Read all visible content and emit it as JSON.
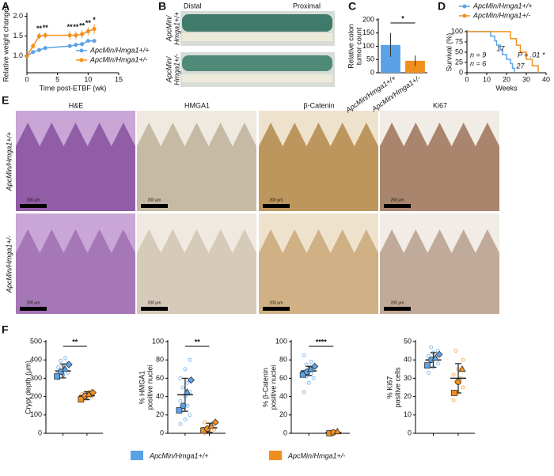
{
  "figure": {
    "panels": [
      "A",
      "B",
      "C",
      "D",
      "E",
      "F"
    ],
    "B": {
      "distal": "Distal",
      "proximal": "Proximal",
      "rows": [
        [
          "ApcMin/",
          "Hmga1+/+"
        ],
        [
          "ApcMin/",
          "Hmga1+/-"
        ]
      ]
    },
    "E": {
      "columns": [
        "H&E",
        "HMGA1",
        "β-Catenin",
        "Ki67"
      ],
      "rows": [
        "ApcMin/Hmga1+/+",
        "ApcMin/Hmga1+/-"
      ],
      "scale_bar": "200 μm"
    },
    "legend": [
      {
        "name": "ApcMin/Hmga1+/+",
        "color": "#5aa2e8"
      },
      {
        "name": "ApcMin/Hmga1+/-",
        "color": "#f28e1c"
      }
    ]
  },
  "chart_data": [
    {
      "type": "line",
      "ylabel": [
        "Relative weight changes"
      ],
      "xlabel": "Time post-ETBF (wk)",
      "xlim": [
        0,
        15
      ],
      "xticks": [
        0,
        5,
        10,
        15
      ],
      "ylim": [
        0.58,
        2.05
      ],
      "yticks": [
        {
          "value": 1,
          "label": "1.0"
        },
        {
          "value": 1.5,
          "label": "1.5"
        },
        {
          "value": 2,
          "label": "2.0"
        }
      ],
      "legend": "lower right",
      "series": [
        {
          "name": "ApcMin/Hmga1+/+",
          "color": "#5aa2e8",
          "x": [
            0,
            1,
            2,
            3,
            7,
            8,
            9,
            10,
            11
          ],
          "values": [
            1.0,
            1.1,
            1.15,
            1.2,
            1.25,
            1.28,
            1.3,
            1.38,
            1.38
          ],
          "errors": [
            0.02,
            0.04,
            0.05,
            0.05,
            0.05,
            0.05,
            0.05,
            0.04,
            0.04
          ]
        },
        {
          "name": "ApcMin/Hmga1+/-",
          "color": "#f28e1c",
          "x": [
            0,
            1,
            2,
            3,
            7,
            8,
            9,
            10,
            11
          ],
          "values": [
            1.0,
            1.25,
            1.5,
            1.52,
            1.52,
            1.52,
            1.55,
            1.62,
            1.68
          ],
          "errors": [
            0.02,
            0.06,
            0.08,
            0.08,
            0.1,
            0.1,
            0.1,
            0.1,
            0.12
          ],
          "significance": [
            null,
            null,
            "**",
            "**",
            "**",
            "**",
            "**",
            "**",
            "*"
          ]
        }
      ]
    },
    {
      "type": "bar",
      "ylabel": [
        "Relative colon",
        "tumor count"
      ],
      "categories": [
        "ApcMin/Hmga1+/+",
        "ApcMin/Hmga1+/-"
      ],
      "values": [
        105,
        45
      ],
      "errors": [
        45,
        20
      ],
      "colors": [
        "#5aa2e8",
        "#f28e1c"
      ],
      "ylim": [
        0,
        200
      ],
      "yticks": [
        0,
        50,
        100,
        150,
        200
      ],
      "significance": "*"
    },
    {
      "type": "step",
      "ylabel": [
        "Survival (%)"
      ],
      "xlabel": "Weeks",
      "xlim": [
        0,
        40
      ],
      "xticks": [
        0,
        10,
        20,
        30,
        40
      ],
      "ylim": [
        0,
        100
      ],
      "yticks": [
        0,
        25,
        50,
        75,
        100
      ],
      "legend": "upper right",
      "p_label": "P = .01 *",
      "series": [
        {
          "name": "ApcMin/Hmga1+/+",
          "color": "#5aa2e8",
          "x": [
            0,
            10,
            12,
            14,
            15,
            17,
            18,
            20,
            22,
            23,
            24
          ],
          "values": [
            100,
            100,
            89,
            78,
            67,
            56,
            44,
            33,
            22,
            11,
            0
          ],
          "n_label": "n = 9",
          "median": 17
        },
        {
          "name": "ApcMin/Hmga1+/-",
          "color": "#f28e1c",
          "x": [
            0,
            20,
            22,
            25,
            27,
            30,
            33,
            36
          ],
          "values": [
            100,
            100,
            83,
            67,
            50,
            33,
            17,
            0
          ],
          "n_label": "n = 6",
          "median": 27
        }
      ]
    },
    {
      "type": "strip",
      "ylabel": [
        "Crypt depth (μm)"
      ],
      "ylim": [
        0,
        500
      ],
      "yticks": [
        0,
        100,
        200,
        300,
        400,
        500
      ],
      "significance": "**",
      "groups": [
        {
          "color": "#5aa2e8",
          "points": [
            300,
            320,
            330,
            345,
            350,
            360,
            370,
            380,
            395,
            410,
            330,
            315
          ],
          "replicates": [
            310,
            335,
            350,
            375
          ],
          "mean": 340,
          "error": 38
        },
        {
          "color": "#f28e1c",
          "points": [
            180,
            190,
            200,
            205,
            210,
            215,
            220,
            230,
            195,
            225
          ],
          "replicates": [
            185,
            205,
            212,
            222
          ],
          "mean": 205,
          "error": 22
        }
      ]
    },
    {
      "type": "strip",
      "ylabel": [
        "% HMGA1",
        "positive nuclei"
      ],
      "ylim": [
        0,
        100
      ],
      "yticks": [
        0,
        20,
        40,
        60,
        80,
        100
      ],
      "significance": "**",
      "groups": [
        {
          "color": "#5aa2e8",
          "points": [
            10,
            15,
            20,
            25,
            30,
            35,
            40,
            45,
            50,
            55,
            60,
            70,
            80
          ],
          "replicates": [
            25,
            30,
            45,
            58
          ],
          "mean": 42,
          "error": 18
        },
        {
          "color": "#f28e1c",
          "points": [
            0,
            2,
            4,
            6,
            8,
            12
          ],
          "replicates": [
            3,
            5,
            8,
            12
          ],
          "mean": 6,
          "error": 5
        }
      ]
    },
    {
      "type": "strip",
      "ylabel": [
        "% β-Catenin",
        "positive nuclei"
      ],
      "ylim": [
        0,
        100
      ],
      "yticks": [
        0,
        20,
        40,
        60,
        80,
        100
      ],
      "significance": "****",
      "groups": [
        {
          "color": "#5aa2e8",
          "points": [
            45,
            55,
            60,
            62,
            65,
            67,
            70,
            72,
            75,
            78,
            85
          ],
          "replicates": [
            64,
            67,
            70,
            73
          ],
          "mean": 68,
          "error": 5
        },
        {
          "color": "#f28e1c",
          "points": [
            0,
            0.5,
            1,
            1.5
          ],
          "replicates": [
            0,
            1,
            2
          ],
          "mean": 1,
          "error": 1
        }
      ]
    },
    {
      "type": "strip",
      "ylabel": [
        "% Ki67",
        "positive cells"
      ],
      "ylim": [
        0,
        50
      ],
      "yticks": [
        0,
        10,
        20,
        30,
        40,
        50
      ],
      "groups": [
        {
          "color": "#5aa2e8",
          "points": [
            33,
            36,
            38,
            40,
            41,
            42,
            44,
            45,
            47
          ],
          "replicates": [
            37,
            40,
            41,
            43
          ],
          "mean": 40,
          "error": 4
        },
        {
          "color": "#f28e1c",
          "points": [
            18,
            22,
            25,
            28,
            30,
            32,
            35,
            40,
            45
          ],
          "replicates": [
            22,
            28,
            35
          ],
          "mean": 30,
          "error": 8
        }
      ]
    }
  ]
}
